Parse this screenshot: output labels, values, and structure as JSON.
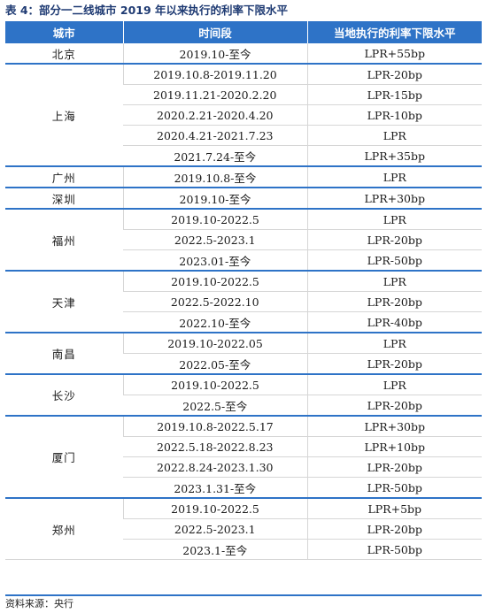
{
  "caption": "表 4：部分一二线城市 2019 年以来执行的利率下限水平",
  "headers": [
    "城市",
    "时间段",
    "当地执行的利率下限水平"
  ],
  "groups": [
    {
      "city": "北京",
      "rows": [
        [
          "2019.10-至今",
          "LPR+55bp"
        ]
      ]
    },
    {
      "city": "上海",
      "rows": [
        [
          "2019.10.8-2019.11.20",
          "LPR-20bp"
        ],
        [
          "2019.11.21-2020.2.20",
          "LPR-15bp"
        ],
        [
          "2020.2.21-2020.4.20",
          "LPR-10bp"
        ],
        [
          "2020.4.21-2021.7.23",
          "LPR"
        ],
        [
          "2021.7.24-至今",
          "LPR+35bp"
        ]
      ]
    },
    {
      "city": "广州",
      "rows": [
        [
          "2019.10.8-至今",
          "LPR"
        ]
      ]
    },
    {
      "city": "深圳",
      "rows": [
        [
          "2019.10-至今",
          "LPR+30bp"
        ]
      ]
    },
    {
      "city": "福州",
      "rows": [
        [
          "2019.10-2022.5",
          "LPR"
        ],
        [
          "2022.5-2023.1",
          "LPR-20bp"
        ],
        [
          "2023.01-至今",
          "LPR-50bp"
        ]
      ]
    },
    {
      "city": "天津",
      "rows": [
        [
          "2019.10-2022.5",
          "LPR"
        ],
        [
          "2022.5-2022.10",
          "LPR-20bp"
        ],
        [
          "2022.10-至今",
          "LPR-40bp"
        ]
      ]
    },
    {
      "city": "南昌",
      "rows": [
        [
          "2019.10-2022.05",
          "LPR"
        ],
        [
          "2022.05-至今",
          "LPR-20bp"
        ]
      ]
    },
    {
      "city": "长沙",
      "rows": [
        [
          "2019.10-2022.5",
          "LPR"
        ],
        [
          "2022.5-至今",
          "LPR-20bp"
        ]
      ]
    },
    {
      "city": "厦门",
      "rows": [
        [
          "2019.10.8-2022.5.17",
          "LPR+30bp"
        ],
        [
          "2022.5.18-2022.8.23",
          "LPR+10bp"
        ],
        [
          "2022.8.24-2023.1.30",
          "LPR-20bp"
        ],
        [
          "2023.1.31-至今",
          "LPR-50bp"
        ]
      ]
    },
    {
      "city": "郑州",
      "rows": [
        [
          "2019.10-2022.5",
          "LPR+5bp"
        ],
        [
          "2022.5-2023.1",
          "LPR-20bp"
        ],
        [
          "2023.1-至今",
          "LPR-50bp"
        ]
      ]
    }
  ],
  "source": "资料来源：央行"
}
